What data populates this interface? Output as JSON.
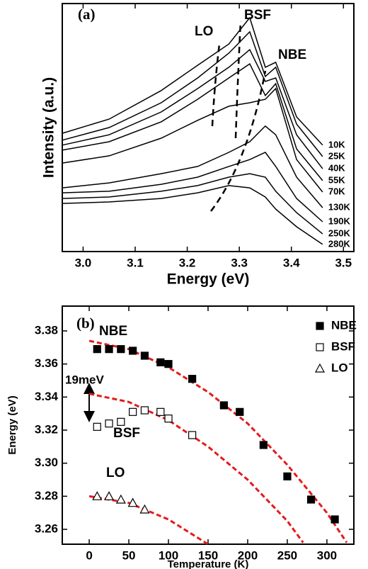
{
  "chart_data": [
    {
      "type": "line",
      "panel_label": "(a)",
      "xlabel": "Energy (eV)",
      "ylabel": "Intensity (a.u.)",
      "xlim": [
        2.96,
        3.52
      ],
      "ylim": [
        0,
        10
      ],
      "xticks": [
        {
          "value": 3.0,
          "label": "3.0"
        },
        3.1,
        3.2,
        3.3,
        3.4,
        {
          "value": 3.5,
          "label": "3.5"
        }
      ],
      "x": [
        2.96,
        3.05,
        3.15,
        3.22,
        3.28,
        3.32,
        3.35,
        3.37,
        3.41,
        3.46
      ],
      "series": [
        {
          "name": "10K",
          "color": "#000000",
          "values": [
            4.77,
            5.34,
            6.49,
            7.51,
            8.37,
            9.43,
            7.43,
            7.63,
            5.43,
            4.29
          ]
        },
        {
          "name": "25K",
          "color": "#000000",
          "values": [
            4.49,
            5.0,
            6.0,
            7.0,
            8.0,
            8.86,
            7.06,
            7.43,
            5.14,
            3.83
          ]
        },
        {
          "name": "40K",
          "color": "#000000",
          "values": [
            4.29,
            4.71,
            5.63,
            6.57,
            7.43,
            8.14,
            6.86,
            7.0,
            4.71,
            3.34
          ]
        },
        {
          "name": "55K",
          "color": "#000000",
          "values": [
            4.09,
            4.43,
            5.23,
            6.14,
            7.0,
            7.57,
            6.29,
            6.77,
            4.14,
            2.86
          ]
        },
        {
          "name": "70K",
          "color": "#000000",
          "values": [
            3.57,
            3.86,
            4.57,
            5.29,
            5.86,
            6.0,
            6.14,
            6.57,
            3.71,
            2.4
          ]
        },
        {
          "name": "130K",
          "color": "#000000",
          "values": [
            2.57,
            2.77,
            3.14,
            3.43,
            4.0,
            4.43,
            5.06,
            4.71,
            3.0,
            1.77
          ]
        },
        {
          "name": "190K",
          "color": "#000000",
          "values": [
            2.37,
            2.43,
            2.71,
            3.0,
            3.43,
            3.71,
            4.0,
            3.43,
            2.14,
            1.2
          ]
        },
        {
          "name": "250K",
          "color": "#000000",
          "values": [
            2.14,
            2.2,
            2.43,
            2.66,
            3.0,
            3.14,
            3.0,
            2.43,
            1.57,
            0.71
          ]
        },
        {
          "name": "280K",
          "color": "#000000",
          "values": [
            1.94,
            2.0,
            2.14,
            2.37,
            2.66,
            2.57,
            2.2,
            1.71,
            1.0,
            0.29
          ]
        }
      ],
      "annotations": [
        "LO",
        "BSF",
        "NBE"
      ]
    },
    {
      "type": "scatter",
      "panel_label": "(b)",
      "xlabel": "Temperature (K)",
      "ylabel": "Energy (eV)",
      "xlim": [
        -34,
        334
      ],
      "ylim": [
        3.251,
        3.395
      ],
      "xticks": [
        0,
        50,
        100,
        150,
        200,
        250,
        300
      ],
      "yticks": [
        3.26,
        3.28,
        {
          "value": 3.3,
          "label": "3.30"
        },
        3.32,
        3.34,
        3.36,
        3.38
      ],
      "legend": "upper right",
      "series": [
        {
          "name": "NBE",
          "color": "#000000",
          "marker": "filled-square",
          "x": [
            10,
            25,
            40,
            55,
            70,
            90,
            100,
            130,
            170,
            190,
            220,
            250,
            280,
            310
          ],
          "values": [
            3.369,
            3.369,
            3.369,
            3.368,
            3.365,
            3.361,
            3.36,
            3.351,
            3.335,
            3.331,
            3.311,
            3.292,
            3.278,
            3.266
          ]
        },
        {
          "name": "BSF",
          "color": "#000000",
          "marker": "open-square",
          "x": [
            10,
            25,
            40,
            55,
            70,
            90,
            100,
            130
          ],
          "values": [
            3.322,
            3.324,
            3.325,
            3.331,
            3.332,
            3.331,
            3.327,
            3.317
          ]
        },
        {
          "name": "LO",
          "color": "#000000",
          "marker": "open-triangle",
          "x": [
            10,
            25,
            40,
            55,
            70
          ],
          "values": [
            3.28,
            3.28,
            3.278,
            3.276,
            3.272
          ]
        }
      ],
      "fit_curves": [
        {
          "color": "#e41a1c",
          "x": [
            0,
            50,
            100,
            150,
            200,
            250,
            300,
            325
          ],
          "values": [
            3.374,
            3.369,
            3.358,
            3.343,
            3.324,
            3.299,
            3.27,
            3.252
          ]
        },
        {
          "color": "#e41a1c",
          "x": [
            0,
            50,
            100,
            150,
            200,
            250,
            270
          ],
          "values": [
            3.342,
            3.337,
            3.326,
            3.31,
            3.29,
            3.265,
            3.252
          ]
        },
        {
          "color": "#e41a1c",
          "x": [
            0,
            50,
            100,
            150
          ],
          "values": [
            3.28,
            3.276,
            3.266,
            3.251
          ]
        }
      ],
      "annotations": [
        "NBE",
        "BSF",
        "LO",
        "19meV"
      ]
    }
  ]
}
